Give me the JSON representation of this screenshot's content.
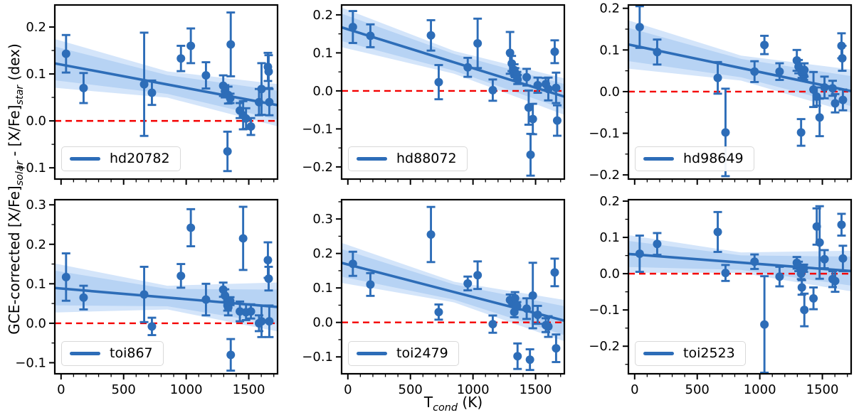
{
  "figure": {
    "background": "#ffffff",
    "ylabel_segments": [
      {
        "text": "GCE-corrected [X/Fe]"
      },
      {
        "text": "solar",
        "sub": true
      },
      {
        "text": " - [X/Fe]"
      },
      {
        "text": "star",
        "sub": true
      },
      {
        "text": " (dex)"
      }
    ],
    "xlabel_segments": [
      {
        "text": "T"
      },
      {
        "text": "cond",
        "sub": true
      },
      {
        "text": " (K)"
      }
    ],
    "colors": {
      "accent": "#2d6db8",
      "band_inner": "#b7d3f4",
      "band_outer": "#d4e5fa",
      "zero_line": "#f40000",
      "spine": "#000000",
      "tick_label": "#000000",
      "legend_border": "#d9d9d9"
    }
  },
  "chart_data": {
    "type": "scatter",
    "description": "Six-panel scatter of GCE-corrected differential abundances vs condensation temperature, with error bars, linear fit and confidence bands, and red dashed zero line.",
    "xlabel": "T_cond (K)",
    "ylabel": "GCE-corrected [X/Fe]_solar - [X/Fe]_star (dex)",
    "x_axis": {
      "lim": [
        -50,
        1730
      ],
      "major_ticks": [
        0,
        500,
        1000,
        1500
      ],
      "minor_step": 100,
      "labels_on_bottom_row_only": true
    },
    "zero_line": {
      "y": 0.0,
      "style": "dashed",
      "color": "#f40000"
    },
    "grid": false,
    "legend_position": "lower left",
    "subplots": [
      {
        "legend": "hd20782",
        "row": 0,
        "col": 0,
        "ylim": [
          -0.124,
          0.247
        ],
        "yticks": [
          -0.1,
          0.0,
          0.1,
          0.2
        ],
        "y_minor_step": 0.05,
        "fit": {
          "x": [
            0,
            1700
          ],
          "y": [
            0.12,
            0.035
          ]
        },
        "band": {
          "x": [
            -50,
            850,
            1730
          ],
          "inner": [
            0.036,
            0.02,
            0.031
          ],
          "outer": [
            0.052,
            0.028,
            0.045
          ]
        },
        "points": [
          [
            40,
            0.143,
            0.04
          ],
          [
            180,
            0.07,
            0.032
          ],
          [
            664,
            0.078,
            0.11
          ],
          [
            726,
            0.06,
            0.026
          ],
          [
            958,
            0.133,
            0.027
          ],
          [
            1037,
            0.16,
            0.037
          ],
          [
            1158,
            0.097,
            0.028
          ],
          [
            1296,
            0.075,
            0.022
          ],
          [
            1310,
            0.063,
            0.013
          ],
          [
            1330,
            -0.065,
            0.042
          ],
          [
            1336,
            0.055,
            0.018
          ],
          [
            1352,
            0.048,
            0.01
          ],
          [
            1356,
            0.163,
            0.068
          ],
          [
            1429,
            0.022,
            0.016
          ],
          [
            1455,
            0.012,
            0.03
          ],
          [
            1478,
            0.005,
            0.022
          ],
          [
            1517,
            -0.012,
            0.018
          ],
          [
            1582,
            0.04,
            0.028
          ],
          [
            1602,
            0.068,
            0.055
          ],
          [
            1653,
            0.115,
            0.03
          ],
          [
            1659,
            0.105,
            0.035
          ],
          [
            1664,
            0.04,
            0.028
          ]
        ]
      },
      {
        "legend": "hd88072",
        "row": 0,
        "col": 1,
        "ylim": [
          -0.232,
          0.226
        ],
        "yticks": [
          -0.2,
          -0.1,
          0.0,
          0.1,
          0.2
        ],
        "y_minor_step": 0.05,
        "fit": {
          "x": [
            0,
            1700
          ],
          "y": [
            0.162,
            -0.012
          ]
        },
        "band": {
          "x": [
            -50,
            850,
            1730
          ],
          "inner": [
            0.036,
            0.022,
            0.033
          ],
          "outer": [
            0.052,
            0.03,
            0.048
          ]
        },
        "points": [
          [
            40,
            0.168,
            0.042
          ],
          [
            180,
            0.145,
            0.03
          ],
          [
            664,
            0.146,
            0.04
          ],
          [
            726,
            0.023,
            0.045
          ],
          [
            958,
            0.062,
            0.025
          ],
          [
            1037,
            0.125,
            0.065
          ],
          [
            1158,
            0.002,
            0.028
          ],
          [
            1296,
            0.1,
            0.055
          ],
          [
            1310,
            0.072,
            0.02
          ],
          [
            1330,
            0.055,
            0.015
          ],
          [
            1336,
            0.048,
            0.012
          ],
          [
            1352,
            0.04,
            0.01
          ],
          [
            1356,
            0.03,
            0.012
          ],
          [
            1429,
            0.036,
            0.022
          ],
          [
            1445,
            -0.044,
            0.045
          ],
          [
            1460,
            -0.168,
            0.055
          ],
          [
            1478,
            -0.074,
            0.04
          ],
          [
            1517,
            0.015,
            0.02
          ],
          [
            1582,
            0.018,
            0.016
          ],
          [
            1602,
            0.005,
            0.03
          ],
          [
            1653,
            0.103,
            0.03
          ],
          [
            1664,
            0.008,
            0.04
          ],
          [
            1673,
            -0.078,
            0.04
          ]
        ]
      },
      {
        "legend": "hd98649",
        "row": 0,
        "col": 2,
        "ylim": [
          -0.21,
          0.208
        ],
        "yticks": [
          -0.2,
          -0.1,
          0.0,
          0.1,
          0.2
        ],
        "y_minor_step": 0.05,
        "fit": {
          "x": [
            0,
            1700
          ],
          "y": [
            0.11,
            0.003
          ]
        },
        "band": {
          "x": [
            -50,
            850,
            1730
          ],
          "inner": [
            0.04,
            0.022,
            0.036
          ],
          "outer": [
            0.058,
            0.03,
            0.052
          ]
        },
        "points": [
          [
            40,
            0.155,
            0.05
          ],
          [
            180,
            0.095,
            0.03
          ],
          [
            664,
            0.033,
            0.038
          ],
          [
            726,
            -0.098,
            0.105
          ],
          [
            958,
            0.048,
            0.025
          ],
          [
            1037,
            0.112,
            0.022
          ],
          [
            1158,
            0.048,
            0.02
          ],
          [
            1296,
            0.075,
            0.025
          ],
          [
            1310,
            0.06,
            0.016
          ],
          [
            1330,
            -0.098,
            0.032
          ],
          [
            1336,
            0.045,
            0.012
          ],
          [
            1352,
            0.038,
            0.01
          ],
          [
            1356,
            0.052,
            0.016
          ],
          [
            1429,
            0.005,
            0.042
          ],
          [
            1455,
            -0.012,
            0.022
          ],
          [
            1478,
            -0.062,
            0.045
          ],
          [
            1517,
            0.01,
            0.026
          ],
          [
            1582,
            0.008,
            0.018
          ],
          [
            1602,
            -0.028,
            0.022
          ],
          [
            1653,
            0.11,
            0.03
          ],
          [
            1659,
            0.08,
            0.03
          ],
          [
            1664,
            -0.02,
            0.025
          ]
        ]
      },
      {
        "legend": "toi867",
        "row": 1,
        "col": 0,
        "ylim": [
          -0.128,
          0.313
        ],
        "yticks": [
          -0.1,
          0.0,
          0.1,
          0.2,
          0.3
        ],
        "y_minor_step": 0.05,
        "fit": {
          "x": [
            0,
            1700
          ],
          "y": [
            0.088,
            0.042
          ]
        },
        "band": {
          "x": [
            -50,
            850,
            1730
          ],
          "inner": [
            0.044,
            0.022,
            0.044
          ],
          "outer": [
            0.062,
            0.03,
            0.062
          ]
        },
        "points": [
          [
            40,
            0.117,
            0.06
          ],
          [
            180,
            0.065,
            0.03
          ],
          [
            664,
            0.073,
            0.07
          ],
          [
            726,
            -0.008,
            0.022
          ],
          [
            958,
            0.12,
            0.03
          ],
          [
            1037,
            0.242,
            0.047
          ],
          [
            1158,
            0.06,
            0.04
          ],
          [
            1296,
            0.085,
            0.018
          ],
          [
            1310,
            0.07,
            0.016
          ],
          [
            1330,
            0.045,
            0.013
          ],
          [
            1336,
            0.04,
            0.02
          ],
          [
            1352,
            0.056,
            0.01
          ],
          [
            1356,
            -0.08,
            0.04
          ],
          [
            1429,
            0.03,
            0.025
          ],
          [
            1455,
            0.215,
            0.08
          ],
          [
            1478,
            0.028,
            0.02
          ],
          [
            1517,
            0.03,
            0.018
          ],
          [
            1582,
            0.0,
            0.02
          ],
          [
            1602,
            0.005,
            0.04
          ],
          [
            1653,
            0.16,
            0.045
          ],
          [
            1659,
            0.113,
            0.03
          ],
          [
            1664,
            0.005,
            0.04
          ]
        ]
      },
      {
        "legend": "toi2479",
        "row": 1,
        "col": 1,
        "ylim": [
          -0.149,
          0.356
        ],
        "yticks": [
          -0.1,
          0.0,
          0.1,
          0.2,
          0.3
        ],
        "y_minor_step": 0.05,
        "fit": {
          "x": [
            0,
            1700
          ],
          "y": [
            0.168,
            0.008
          ]
        },
        "band": {
          "x": [
            -50,
            850,
            1730
          ],
          "inner": [
            0.04,
            0.022,
            0.042
          ],
          "outer": [
            0.058,
            0.03,
            0.06
          ]
        },
        "points": [
          [
            40,
            0.17,
            0.035
          ],
          [
            180,
            0.11,
            0.033
          ],
          [
            664,
            0.255,
            0.08
          ],
          [
            726,
            0.03,
            0.022
          ],
          [
            958,
            0.113,
            0.02
          ],
          [
            1037,
            0.137,
            0.04
          ],
          [
            1158,
            -0.005,
            0.025
          ],
          [
            1296,
            0.065,
            0.016
          ],
          [
            1310,
            0.06,
            0.013
          ],
          [
            1330,
            0.03,
            0.015
          ],
          [
            1336,
            0.07,
            0.018
          ],
          [
            1352,
            0.048,
            0.011
          ],
          [
            1356,
            -0.098,
            0.037
          ],
          [
            1429,
            0.04,
            0.03
          ],
          [
            1455,
            -0.108,
            0.03
          ],
          [
            1478,
            0.078,
            0.095
          ],
          [
            1517,
            0.022,
            0.026
          ],
          [
            1582,
            -0.008,
            0.02
          ],
          [
            1602,
            -0.012,
            0.03
          ],
          [
            1653,
            0.145,
            0.04
          ],
          [
            1664,
            -0.075,
            0.04
          ]
        ]
      },
      {
        "legend": "toi2523",
        "row": 1,
        "col": 2,
        "ylim": [
          -0.276,
          0.204
        ],
        "yticks": [
          -0.2,
          -0.1,
          0.0,
          0.1,
          0.2
        ],
        "y_minor_step": 0.05,
        "fit": {
          "x": [
            0,
            1700
          ],
          "y": [
            0.053,
            0.008
          ]
        },
        "band": {
          "x": [
            -50,
            850,
            1730
          ],
          "inner": [
            0.036,
            0.02,
            0.04
          ],
          "outer": [
            0.052,
            0.028,
            0.056
          ]
        },
        "points": [
          [
            40,
            0.055,
            0.05
          ],
          [
            180,
            0.082,
            0.03
          ],
          [
            664,
            0.115,
            0.055
          ],
          [
            726,
            0.002,
            0.022
          ],
          [
            958,
            0.033,
            0.02
          ],
          [
            1037,
            -0.14,
            0.133
          ],
          [
            1158,
            -0.008,
            0.027
          ],
          [
            1296,
            0.03,
            0.016
          ],
          [
            1310,
            0.02,
            0.013
          ],
          [
            1330,
            0.0,
            0.015
          ],
          [
            1336,
            -0.038,
            0.02
          ],
          [
            1352,
            0.015,
            0.01
          ],
          [
            1356,
            -0.1,
            0.045
          ],
          [
            1429,
            -0.068,
            0.03
          ],
          [
            1455,
            0.13,
            0.05
          ],
          [
            1478,
            0.086,
            0.1
          ],
          [
            1517,
            0.04,
            0.025
          ],
          [
            1582,
            -0.015,
            0.022
          ],
          [
            1602,
            -0.02,
            0.03
          ],
          [
            1653,
            0.135,
            0.03
          ],
          [
            1664,
            0.042,
            0.035
          ]
        ]
      }
    ]
  }
}
